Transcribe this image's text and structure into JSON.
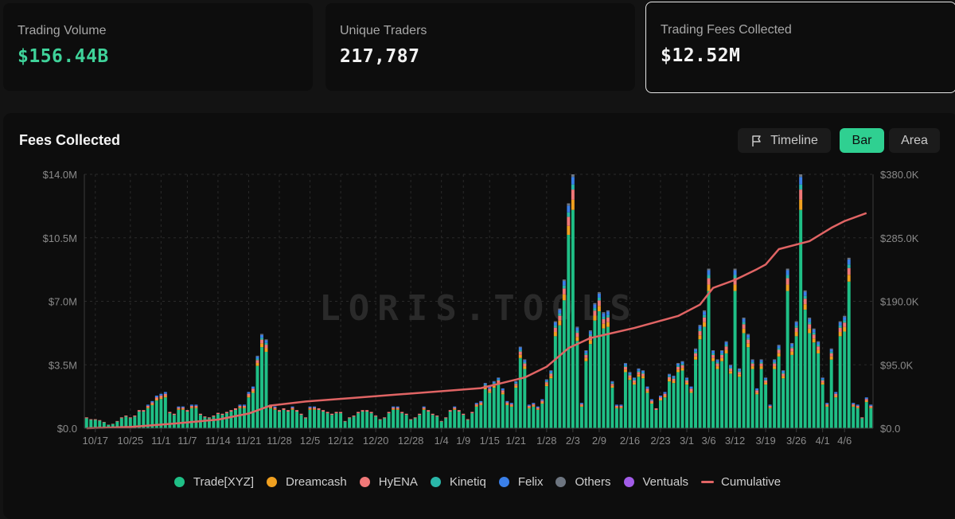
{
  "stats": [
    {
      "label": "Trading Volume",
      "value": "$156.44B"
    },
    {
      "label": "Unique Traders",
      "value": "217,787"
    },
    {
      "label": "Trading Fees Collected",
      "value": "$12.52M"
    }
  ],
  "panel": {
    "title": "Fees Collected",
    "buttons": {
      "timeline": "Timeline",
      "bar": "Bar",
      "area": "Area"
    },
    "watermark": "LORIS.TOOLS"
  },
  "colors": {
    "trade_xyz": "#1fbf86",
    "dreamcash": "#f0a020",
    "hyena": "#f07878",
    "kinetiq": "#2ab7a9",
    "felix": "#3a7fe8",
    "others": "#6d7580",
    "ventuals": "#a25ce8",
    "cumulative": "#e06464"
  },
  "chart_data": {
    "type": "bar",
    "stacked": true,
    "title": "Fees Collected",
    "left_axis": {
      "min": 0,
      "max": 14000000,
      "ticks": [
        "$0.0",
        "$3.5M",
        "$7.0M",
        "$10.5M",
        "$14.0M"
      ]
    },
    "right_axis": {
      "min": 0,
      "max": 380000,
      "ticks": [
        "$0.0",
        "$95.0K",
        "$190.0K",
        "$285.0K",
        "$380.0K"
      ]
    },
    "x_ticks": [
      "10/17",
      "10/25",
      "11/1",
      "11/7",
      "11/14",
      "11/21",
      "11/28",
      "12/5",
      "12/12",
      "12/20",
      "12/28",
      "1/4",
      "1/9",
      "1/15",
      "1/21",
      "1/28",
      "2/3",
      "2/9",
      "2/16",
      "2/23",
      "3/1",
      "3/6",
      "3/12",
      "3/19",
      "3/26",
      "4/1",
      "4/6"
    ],
    "x_tick_bar_index": [
      2,
      10,
      17,
      23,
      30,
      37,
      44,
      51,
      58,
      66,
      74,
      81,
      86,
      92,
      98,
      105,
      111,
      117,
      124,
      131,
      137,
      142,
      148,
      155,
      162,
      168,
      173
    ],
    "legend_placement": "bottom",
    "grid": true,
    "series": [
      {
        "name": "Trade[XYZ]",
        "color_key": "trade_xyz"
      },
      {
        "name": "Dreamcash",
        "color_key": "dreamcash"
      },
      {
        "name": "HyENA",
        "color_key": "hyena"
      },
      {
        "name": "Kinetiq",
        "color_key": "kinetiq"
      },
      {
        "name": "Felix",
        "color_key": "felix"
      },
      {
        "name": "Others",
        "color_key": "others"
      },
      {
        "name": "Ventuals",
        "color_key": "ventuals"
      },
      {
        "name": "Cumulative",
        "color_key": "cumulative",
        "axis": "right",
        "kind": "line"
      }
    ],
    "bar_totals_millions": [
      0.6,
      0.5,
      0.5,
      0.45,
      0.35,
      0.2,
      0.25,
      0.4,
      0.6,
      0.7,
      0.6,
      0.7,
      1.0,
      1.0,
      1.3,
      1.5,
      1.8,
      1.9,
      2.0,
      0.9,
      0.8,
      1.2,
      1.2,
      1.0,
      1.3,
      1.3,
      0.8,
      0.65,
      0.6,
      0.7,
      0.85,
      0.8,
      0.9,
      1.0,
      1.1,
      1.3,
      1.3,
      2.0,
      2.3,
      4.0,
      5.2,
      4.9,
      1.3,
      1.2,
      1.0,
      1.1,
      1.0,
      1.2,
      1.0,
      0.8,
      0.6,
      1.2,
      1.2,
      1.1,
      1.0,
      0.9,
      0.8,
      0.9,
      0.9,
      0.4,
      0.6,
      0.7,
      0.9,
      1.0,
      1.0,
      0.9,
      0.7,
      0.5,
      0.6,
      0.9,
      1.2,
      1.2,
      0.9,
      0.8,
      0.5,
      0.6,
      0.8,
      1.2,
      1.0,
      0.8,
      0.7,
      0.4,
      0.6,
      1.0,
      1.2,
      1.0,
      0.8,
      0.5,
      0.9,
      1.4,
      1.5,
      2.5,
      2.3,
      2.6,
      2.8,
      2.2,
      1.5,
      1.4,
      2.6,
      4.5,
      3.8,
      1.3,
      1.4,
      1.2,
      1.6,
      2.7,
      3.2,
      5.9,
      6.6,
      8.2,
      12.4,
      14.0,
      5.6,
      1.4,
      4.3,
      5.4,
      6.9,
      7.5,
      6.4,
      6.5,
      2.6,
      1.3,
      1.3,
      3.6,
      3.1,
      2.8,
      3.3,
      3.2,
      2.3,
      1.6,
      1.1,
      1.8,
      2.0,
      3.0,
      2.9,
      3.6,
      3.7,
      2.8,
      2.3,
      4.4,
      5.7,
      6.5,
      8.8,
      4.3,
      3.8,
      4.3,
      4.8,
      3.5,
      8.8,
      3.3,
      6.1,
      5.2,
      3.8,
      2.2,
      3.8,
      2.8,
      1.3,
      3.8,
      4.6,
      3.2,
      8.8,
      4.7,
      5.9,
      14.0,
      7.6,
      6.1,
      5.5,
      4.8,
      2.8,
      1.4,
      4.4,
      2.0,
      5.9,
      6.2,
      9.4,
      1.4,
      1.3,
      0.6,
      1.7,
      1.3
    ],
    "cumulative_thousands_by_bar_index": [
      [
        0,
        0
      ],
      [
        10,
        2
      ],
      [
        20,
        7
      ],
      [
        30,
        13
      ],
      [
        37,
        22
      ],
      [
        42,
        34
      ],
      [
        50,
        40
      ],
      [
        60,
        45
      ],
      [
        70,
        50
      ],
      [
        80,
        55
      ],
      [
        90,
        60
      ],
      [
        95,
        68
      ],
      [
        100,
        76
      ],
      [
        105,
        92
      ],
      [
        110,
        120
      ],
      [
        115,
        135
      ],
      [
        125,
        150
      ],
      [
        135,
        168
      ],
      [
        140,
        185
      ],
      [
        143,
        210
      ],
      [
        148,
        222
      ],
      [
        153,
        238
      ],
      [
        155,
        245
      ],
      [
        158,
        268
      ],
      [
        165,
        280
      ],
      [
        170,
        300
      ],
      [
        173,
        310
      ],
      [
        178,
        322
      ]
    ]
  },
  "legend": [
    "Trade[XYZ]",
    "Dreamcash",
    "HyENA",
    "Kinetiq",
    "Felix",
    "Others",
    "Ventuals",
    "Cumulative"
  ]
}
